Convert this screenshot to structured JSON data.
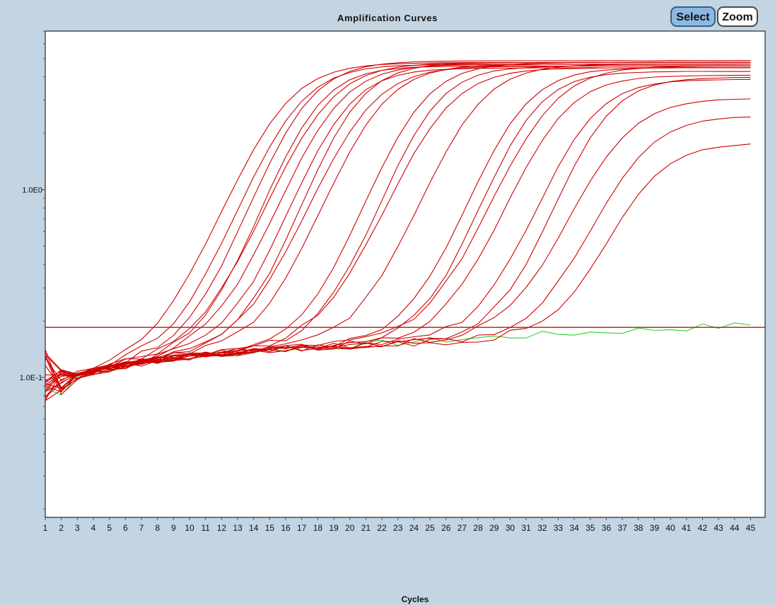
{
  "toolbar": {
    "select_label": "Select",
    "zoom_label": "Zoom"
  },
  "chart_data": {
    "type": "line",
    "title": "Amplification Curves",
    "xlabel": "Cycles",
    "ylabel": "",
    "y_scale": "log",
    "ylim": [
      0.018,
      7.0
    ],
    "xlim": [
      1,
      45
    ],
    "y_tick_labels": [
      "1.0E0",
      "1.0E-1"
    ],
    "y_tick_values": [
      1.0,
      0.1
    ],
    "x_ticks": [
      1,
      2,
      3,
      4,
      5,
      6,
      7,
      8,
      9,
      10,
      11,
      12,
      13,
      14,
      15,
      16,
      17,
      18,
      19,
      20,
      21,
      22,
      23,
      24,
      25,
      26,
      27,
      28,
      29,
      30,
      31,
      32,
      33,
      34,
      35,
      36,
      37,
      38,
      39,
      40,
      41,
      42,
      43,
      44,
      45
    ],
    "threshold": 0.185,
    "grid": false,
    "legend": "none",
    "colors": {
      "positive": "#d00000",
      "negative": "#2fd02f",
      "threshold": "#b01818",
      "plot_bg": "#ffffff",
      "frame_bg": "#c3d4e2"
    },
    "series_params": [
      {
        "ct": 12.0,
        "plateau": 4.6,
        "color": "positive"
      },
      {
        "ct": 12.8,
        "plateau": 4.5,
        "color": "positive"
      },
      {
        "ct": 13.4,
        "plateau": 4.7,
        "color": "positive"
      },
      {
        "ct": 14.0,
        "plateau": 4.4,
        "color": "positive"
      },
      {
        "ct": 14.6,
        "plateau": 4.6,
        "color": "positive"
      },
      {
        "ct": 15.2,
        "plateau": 4.5,
        "color": "positive"
      },
      {
        "ct": 15.8,
        "plateau": 4.3,
        "color": "positive"
      },
      {
        "ct": 16.5,
        "plateau": 4.6,
        "color": "positive"
      },
      {
        "ct": 17.2,
        "plateau": 4.4,
        "color": "positive"
      },
      {
        "ct": 18.0,
        "plateau": 4.5,
        "color": "positive"
      },
      {
        "ct": 20.5,
        "plateau": 4.6,
        "color": "positive"
      },
      {
        "ct": 21.3,
        "plateau": 4.4,
        "color": "positive"
      },
      {
        "ct": 22.0,
        "plateau": 4.3,
        "color": "positive"
      },
      {
        "ct": 24.0,
        "plateau": 4.5,
        "color": "positive"
      },
      {
        "ct": 26.8,
        "plateau": 4.3,
        "color": "positive"
      },
      {
        "ct": 27.5,
        "plateau": 4.1,
        "color": "positive"
      },
      {
        "ct": 28.5,
        "plateau": 4.4,
        "color": "positive"
      },
      {
        "ct": 29.2,
        "plateau": 3.9,
        "color": "positive"
      },
      {
        "ct": 31.0,
        "plateau": 3.7,
        "color": "positive"
      },
      {
        "ct": 32.0,
        "plateau": 3.8,
        "color": "positive"
      },
      {
        "ct": 33.0,
        "plateau": 2.9,
        "color": "positive"
      },
      {
        "ct": 34.2,
        "plateau": 2.3,
        "color": "positive"
      },
      {
        "ct": 34.8,
        "plateau": 1.6,
        "color": "positive"
      },
      {
        "ct": null,
        "plateau": null,
        "color": "negative"
      }
    ]
  }
}
